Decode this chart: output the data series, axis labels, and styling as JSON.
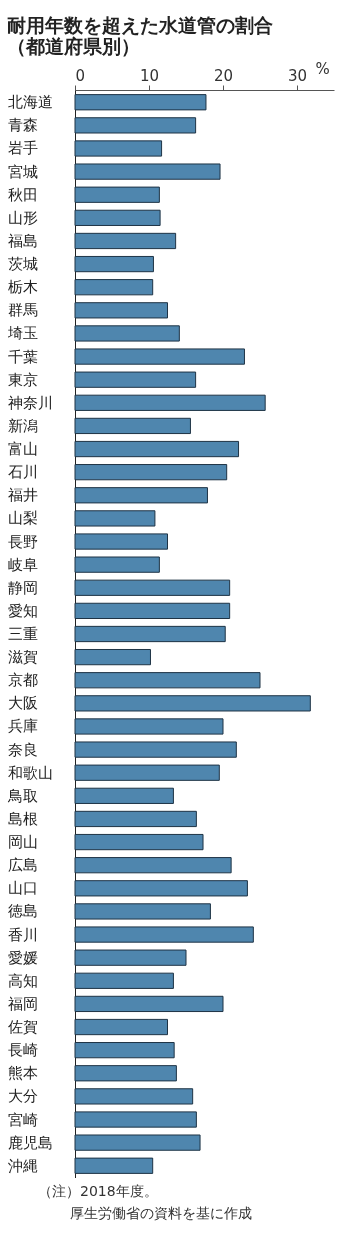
{
  "chart_data": {
    "type": "bar",
    "orientation": "horizontal",
    "title": "耐用年数を超えた水道管の割合",
    "subtitle": "（都道府県別）",
    "xlabel": "%",
    "categories": [
      "北海道",
      "青森",
      "岩手",
      "宮城",
      "秋田",
      "山形",
      "福島",
      "茨城",
      "栃木",
      "群馬",
      "埼玉",
      "千葉",
      "東京",
      "神奈川",
      "新潟",
      "富山",
      "石川",
      "福井",
      "山梨",
      "長野",
      "岐阜",
      "静岡",
      "愛知",
      "三重",
      "滋賀",
      "京都",
      "大阪",
      "兵庫",
      "奈良",
      "和歌山",
      "鳥取",
      "島根",
      "岡山",
      "広島",
      "山口",
      "徳島",
      "香川",
      "愛媛",
      "高知",
      "福岡",
      "佐賀",
      "長崎",
      "熊本",
      "大分",
      "宮崎",
      "鹿児島",
      "沖縄"
    ],
    "values": [
      17.7,
      16.3,
      11.7,
      19.6,
      11.4,
      11.5,
      13.6,
      10.6,
      10.5,
      12.5,
      14.1,
      22.9,
      16.3,
      25.7,
      15.6,
      22.1,
      20.5,
      17.9,
      10.8,
      12.5,
      11.4,
      20.9,
      20.9,
      20.3,
      10.2,
      25.0,
      31.8,
      20.0,
      21.8,
      19.5,
      13.3,
      16.4,
      17.3,
      21.1,
      23.3,
      18.3,
      24.1,
      15.0,
      13.3,
      20.0,
      12.5,
      13.4,
      13.7,
      15.9,
      16.4,
      16.9,
      10.5
    ],
    "color": "#4f86ae",
    "xlim": [
      0,
      35
    ],
    "xticks": [
      0,
      10,
      20,
      30
    ],
    "annotations": [
      "（注）2018年度。",
      "厚生労働省の資料を基に作成"
    ]
  }
}
